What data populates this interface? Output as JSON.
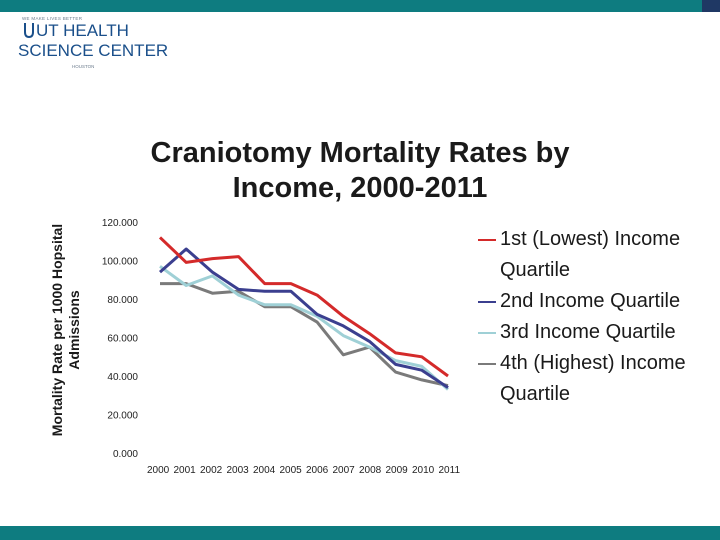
{
  "branding": {
    "tagline": "WE MAKE LIVES BETTER",
    "name_line1": "UT HEALTH",
    "name_line2": "SCIENCE CENTER",
    "city": "HOUSTON",
    "colors": {
      "bar": "#0e7c80",
      "accent": "#1f3864",
      "logo": "#1a4f8a"
    }
  },
  "chart_data": {
    "type": "line",
    "title": "Craniotomy Mortality Rates by Income, 2000-2011",
    "ylabel": "Mortality Rate per 1000 Hopsital Admissions",
    "xlabel": "",
    "x": [
      "2000",
      "2001",
      "2002",
      "2003",
      "2004",
      "2005",
      "2006",
      "2007",
      "2008",
      "2009",
      "2010",
      "2011"
    ],
    "ylim": [
      0,
      120
    ],
    "yticks": [
      0,
      20,
      40,
      60,
      80,
      100,
      120
    ],
    "ytick_labels": [
      "0.000",
      "20.000",
      "40.000",
      "60.000",
      "80.000",
      "100.000",
      "120.000"
    ],
    "grid": false,
    "legend_position": "right",
    "series": [
      {
        "name": "1st (Lowest) Income Quartile",
        "color": "#d42a2a",
        "values": [
          112,
          99,
          101,
          102,
          88,
          88,
          82,
          71,
          62,
          52,
          50,
          40
        ]
      },
      {
        "name": "2nd Income Quartile",
        "color": "#3b3f8f",
        "values": [
          94,
          106,
          94,
          85,
          84,
          84,
          72,
          66,
          58,
          46,
          43,
          34
        ]
      },
      {
        "name": "3rd Income Quartile",
        "color": "#9fd0d6",
        "values": [
          97,
          87,
          92,
          82,
          77,
          77,
          71,
          61,
          55,
          48,
          45,
          33
        ]
      },
      {
        "name": "4th (Highest) Income Quartile",
        "color": "#7a7a7a",
        "values": [
          88,
          88,
          83,
          84,
          76,
          76,
          68,
          51,
          55,
          42,
          38,
          35
        ]
      }
    ]
  }
}
